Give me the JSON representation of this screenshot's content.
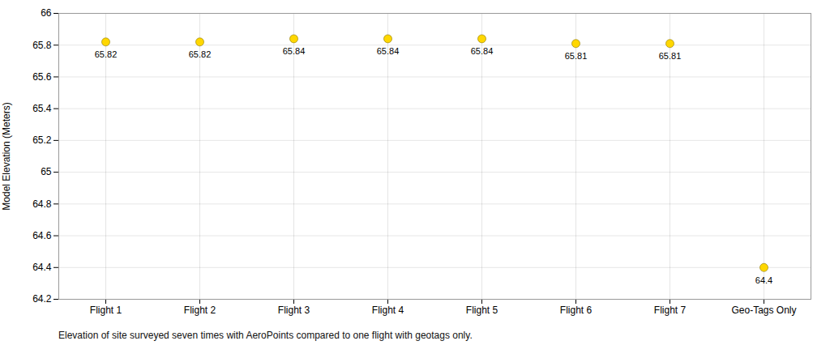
{
  "chart_data": {
    "type": "scatter",
    "categories": [
      "Flight 1",
      "Flight 2",
      "Flight 3",
      "Flight 4",
      "Flight 5",
      "Flight 6",
      "Flight 7",
      "Geo-Tags Only"
    ],
    "values": [
      65.82,
      65.82,
      65.84,
      65.84,
      65.84,
      65.81,
      65.81,
      64.4
    ],
    "color": "#FFD700",
    "ylabel": "Model Elevation (Meters)",
    "caption": "Elevation of site surveyed seven times with AeroPoints compared to one flight with geotags only.",
    "ylim": [
      64.2,
      66.0
    ],
    "yticks": [
      64.2,
      64.4,
      64.6,
      64.8,
      65,
      65.2,
      65.4,
      65.6,
      65.8,
      66
    ],
    "grid": true,
    "data_labels": true
  }
}
